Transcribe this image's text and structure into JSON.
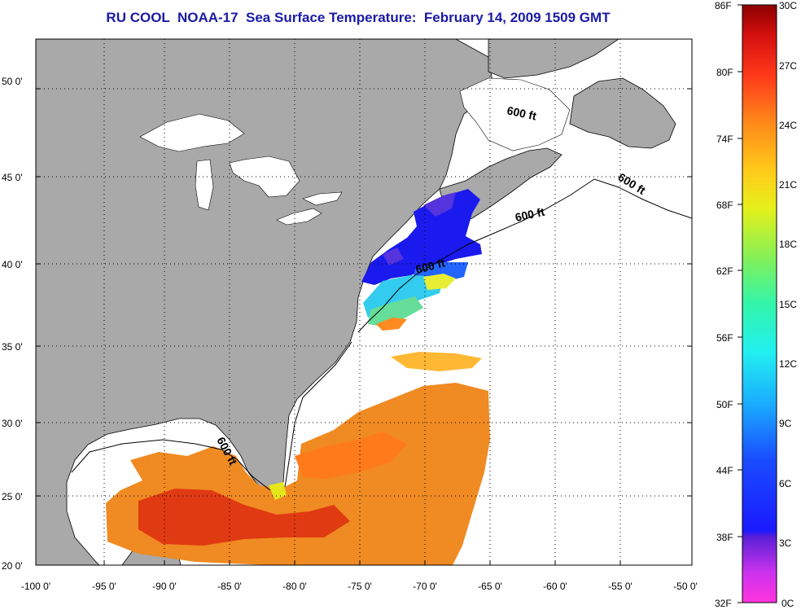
{
  "title": "RU COOL  NOAA-17  Sea Surface Temperature:  February 14, 2009 1509 GMT",
  "map": {
    "lat_labels": [
      "50 0'",
      "45 0'",
      "40 0'",
      "35 0'",
      "30 0'",
      "25 0'",
      "20 0'"
    ],
    "lon_labels": [
      "-100 0'",
      "-95 0'",
      "-90 0'",
      "-85 0'",
      "-80 0'",
      "-75 0'",
      "-70 0'",
      "-65 0'",
      "-60 0'",
      "-55 0'",
      "-50 0'"
    ],
    "isobath_label": "600 ft",
    "colors": {
      "land": "#a9a9a9",
      "ocean_nodata": "#ffffff",
      "grid": "#000000"
    }
  },
  "colorbar": {
    "fahrenheit_labels": [
      "86F",
      "80F",
      "74F",
      "68F",
      "62F",
      "56F",
      "50F",
      "44F",
      "38F",
      "32F"
    ],
    "celsius_labels": [
      "30C",
      "27C",
      "24C",
      "21C",
      "18C",
      "15C",
      "12C",
      "9C",
      "6C",
      "3C",
      "0C"
    ]
  }
}
